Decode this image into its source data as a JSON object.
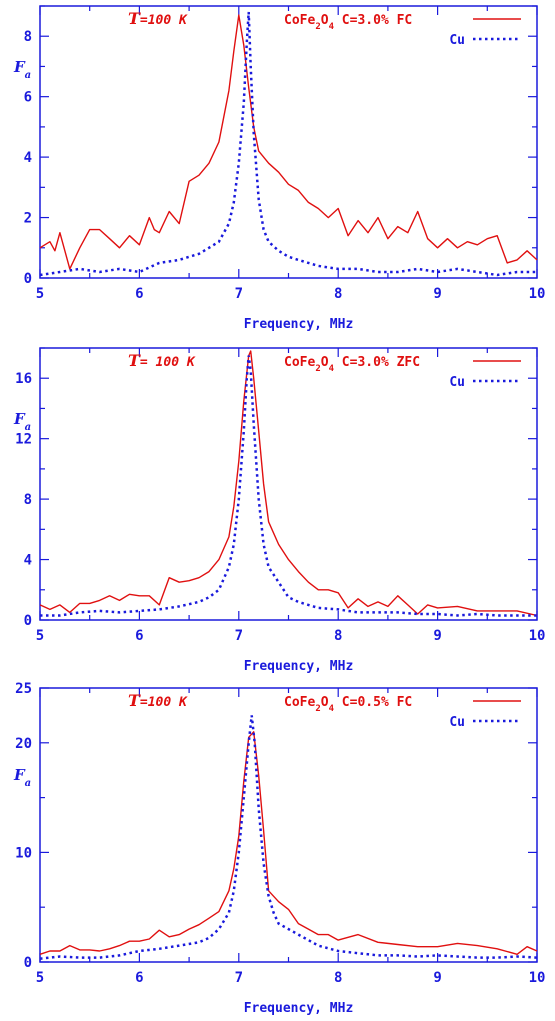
{
  "colors": {
    "axis": "#1a1adc",
    "sample": "#e01010",
    "reference": "#1a1adc"
  },
  "chart_data": [
    {
      "type": "line",
      "annotation": "=100 K",
      "annotation_var": "T",
      "sample_label": "CoFe2O4 C=3.0% FC",
      "xlabel": "Frequency, MHz",
      "ylabel": "F",
      "ylabel_sub": "a",
      "xlim": [
        5,
        10
      ],
      "ylim": [
        0,
        9
      ],
      "xticks": [
        5,
        6,
        7,
        8,
        9,
        10
      ],
      "yticks": [
        0,
        2,
        4,
        6,
        8
      ],
      "legend_position": "top-right",
      "series": [
        {
          "name": "CoFe2O4 C=3.0% FC",
          "style": "solid",
          "color": "#e01010",
          "x": [
            5.0,
            5.1,
            5.15,
            5.2,
            5.3,
            5.4,
            5.5,
            5.6,
            5.7,
            5.8,
            5.9,
            6.0,
            6.1,
            6.15,
            6.2,
            6.3,
            6.4,
            6.5,
            6.6,
            6.7,
            6.8,
            6.9,
            6.95,
            7.0,
            7.02,
            7.05,
            7.1,
            7.15,
            7.2,
            7.3,
            7.4,
            7.5,
            7.6,
            7.7,
            7.8,
            7.9,
            8.0,
            8.1,
            8.2,
            8.3,
            8.4,
            8.5,
            8.6,
            8.7,
            8.8,
            8.9,
            9.0,
            9.1,
            9.2,
            9.3,
            9.4,
            9.5,
            9.6,
            9.7,
            9.8,
            9.9,
            10.0
          ],
          "y": [
            1.0,
            1.2,
            0.9,
            1.5,
            0.3,
            1.0,
            1.6,
            1.6,
            1.3,
            1.0,
            1.4,
            1.1,
            2.0,
            1.6,
            1.5,
            2.2,
            1.8,
            3.2,
            3.4,
            3.8,
            4.5,
            6.2,
            7.5,
            8.7,
            8.3,
            7.7,
            6.3,
            5.0,
            4.2,
            3.8,
            3.5,
            3.1,
            2.9,
            2.5,
            2.3,
            2.0,
            2.3,
            1.4,
            1.9,
            1.5,
            2.0,
            1.3,
            1.7,
            1.5,
            2.2,
            1.3,
            1.0,
            1.3,
            1.0,
            1.2,
            1.1,
            1.3,
            1.4,
            0.5,
            0.6,
            0.9,
            0.6
          ]
        },
        {
          "name": "Cu",
          "style": "dotted",
          "color": "#1a1adc",
          "x": [
            5.0,
            5.2,
            5.4,
            5.6,
            5.8,
            6.0,
            6.2,
            6.4,
            6.6,
            6.7,
            6.8,
            6.9,
            6.95,
            7.0,
            7.05,
            7.08,
            7.1,
            7.12,
            7.15,
            7.2,
            7.25,
            7.3,
            7.4,
            7.5,
            7.6,
            7.8,
            8.0,
            8.2,
            8.4,
            8.6,
            8.8,
            9.0,
            9.2,
            9.4,
            9.6,
            9.8,
            10.0
          ],
          "y": [
            0.1,
            0.2,
            0.3,
            0.2,
            0.3,
            0.2,
            0.5,
            0.6,
            0.8,
            1.0,
            1.2,
            1.8,
            2.5,
            3.8,
            5.8,
            7.8,
            8.8,
            7.0,
            4.8,
            2.6,
            1.6,
            1.2,
            0.9,
            0.7,
            0.6,
            0.4,
            0.3,
            0.3,
            0.2,
            0.2,
            0.3,
            0.2,
            0.3,
            0.2,
            0.1,
            0.2,
            0.2
          ]
        }
      ]
    },
    {
      "type": "line",
      "annotation": "= 100 K",
      "annotation_var": "T",
      "sample_label": "CoFe2O4 C=3.0% ZFC",
      "xlabel": "Frequency, MHz",
      "ylabel": "F",
      "ylabel_sub": "a",
      "xlim": [
        5,
        10
      ],
      "ylim": [
        0,
        18
      ],
      "xticks": [
        5,
        6,
        7,
        8,
        9,
        10
      ],
      "yticks": [
        0,
        4,
        8,
        12,
        16
      ],
      "legend_position": "top-right",
      "series": [
        {
          "name": "CoFe2O4 C=3.0% ZFC",
          "style": "solid",
          "color": "#e01010",
          "x": [
            5.0,
            5.1,
            5.2,
            5.3,
            5.4,
            5.5,
            5.6,
            5.7,
            5.8,
            5.9,
            6.0,
            6.1,
            6.2,
            6.3,
            6.4,
            6.5,
            6.6,
            6.7,
            6.8,
            6.9,
            6.95,
            7.0,
            7.05,
            7.1,
            7.12,
            7.15,
            7.2,
            7.25,
            7.3,
            7.4,
            7.5,
            7.6,
            7.7,
            7.8,
            7.9,
            8.0,
            8.1,
            8.2,
            8.3,
            8.4,
            8.5,
            8.6,
            8.7,
            8.8,
            8.9,
            9.0,
            9.2,
            9.4,
            9.6,
            9.8,
            10.0
          ],
          "y": [
            1.0,
            0.7,
            1.0,
            0.5,
            1.1,
            1.1,
            1.3,
            1.6,
            1.3,
            1.7,
            1.6,
            1.6,
            1.0,
            2.8,
            2.5,
            2.6,
            2.8,
            3.2,
            4.0,
            5.5,
            7.5,
            10.5,
            14.5,
            17.5,
            17.8,
            16.0,
            12.5,
            9.0,
            6.5,
            5.0,
            4.0,
            3.2,
            2.5,
            2.0,
            2.0,
            1.8,
            0.8,
            1.4,
            0.9,
            1.2,
            0.9,
            1.6,
            1.0,
            0.4,
            1.0,
            0.8,
            0.9,
            0.6,
            0.6,
            0.6,
            0.3
          ]
        },
        {
          "name": "Cu",
          "style": "dotted",
          "color": "#1a1adc",
          "x": [
            5.0,
            5.2,
            5.4,
            5.6,
            5.8,
            6.0,
            6.2,
            6.4,
            6.6,
            6.7,
            6.8,
            6.9,
            6.95,
            7.0,
            7.05,
            7.08,
            7.1,
            7.12,
            7.15,
            7.2,
            7.25,
            7.3,
            7.4,
            7.5,
            7.6,
            7.8,
            8.0,
            8.2,
            8.4,
            8.6,
            8.8,
            9.0,
            9.2,
            9.4,
            9.6,
            9.8,
            10.0
          ],
          "y": [
            0.3,
            0.3,
            0.5,
            0.6,
            0.5,
            0.6,
            0.7,
            0.9,
            1.2,
            1.5,
            2.0,
            3.5,
            5.0,
            8.0,
            12.5,
            16.0,
            17.5,
            16.5,
            13.0,
            8.0,
            5.0,
            3.5,
            2.5,
            1.5,
            1.2,
            0.8,
            0.7,
            0.5,
            0.5,
            0.5,
            0.4,
            0.4,
            0.3,
            0.4,
            0.3,
            0.3,
            0.3
          ]
        }
      ]
    },
    {
      "type": "line",
      "annotation": "=100 K",
      "annotation_var": "T",
      "sample_label": "CoFe2O4 C=0.5% FC",
      "xlabel": "Frequency, MHz",
      "ylabel": "F",
      "ylabel_sub": "a",
      "xlim": [
        5,
        10
      ],
      "ylim": [
        0,
        25
      ],
      "xticks": [
        5,
        6,
        7,
        8,
        9,
        10
      ],
      "yticks": [
        0,
        10,
        20,
        25
      ],
      "yticks_labeled": [
        0,
        10,
        20,
        25
      ],
      "legend_position": "top-right",
      "series": [
        {
          "name": "CoFe2O4 C=0.5% FC",
          "style": "solid",
          "color": "#e01010",
          "x": [
            5.0,
            5.1,
            5.2,
            5.3,
            5.4,
            5.5,
            5.6,
            5.7,
            5.8,
            5.9,
            6.0,
            6.1,
            6.2,
            6.3,
            6.4,
            6.5,
            6.6,
            6.7,
            6.8,
            6.9,
            6.95,
            7.0,
            7.05,
            7.1,
            7.15,
            7.2,
            7.25,
            7.3,
            7.4,
            7.5,
            7.6,
            7.7,
            7.8,
            7.9,
            8.0,
            8.2,
            8.4,
            8.6,
            8.8,
            9.0,
            9.2,
            9.4,
            9.6,
            9.8,
            9.9,
            10.0
          ],
          "y": [
            0.7,
            1.0,
            1.0,
            1.5,
            1.1,
            1.1,
            1.0,
            1.2,
            1.5,
            1.9,
            1.9,
            2.1,
            2.9,
            2.3,
            2.5,
            3.0,
            3.4,
            4.0,
            4.6,
            6.5,
            8.5,
            11.5,
            16.5,
            20.5,
            21.0,
            17.0,
            12.0,
            6.5,
            5.5,
            4.8,
            3.5,
            3.0,
            2.5,
            2.5,
            2.0,
            2.5,
            1.8,
            1.6,
            1.4,
            1.4,
            1.7,
            1.5,
            1.2,
            0.7,
            1.4,
            1.0
          ]
        },
        {
          "name": "Cu",
          "style": "dotted",
          "color": "#1a1adc",
          "x": [
            5.0,
            5.2,
            5.4,
            5.6,
            5.8,
            6.0,
            6.2,
            6.4,
            6.6,
            6.7,
            6.8,
            6.9,
            6.95,
            7.0,
            7.05,
            7.1,
            7.13,
            7.16,
            7.2,
            7.25,
            7.3,
            7.35,
            7.4,
            7.5,
            7.6,
            7.7,
            7.8,
            8.0,
            8.2,
            8.4,
            8.6,
            8.8,
            9.0,
            9.2,
            9.4,
            9.6,
            9.8,
            10.0
          ],
          "y": [
            0.3,
            0.5,
            0.4,
            0.4,
            0.6,
            1.0,
            1.2,
            1.5,
            1.8,
            2.2,
            3.0,
            4.5,
            6.5,
            10.0,
            15.0,
            20.0,
            22.5,
            20.0,
            14.0,
            9.0,
            6.0,
            4.5,
            3.5,
            3.0,
            2.5,
            2.0,
            1.5,
            1.0,
            0.8,
            0.6,
            0.6,
            0.5,
            0.6,
            0.5,
            0.4,
            0.4,
            0.5,
            0.4
          ]
        }
      ]
    }
  ]
}
